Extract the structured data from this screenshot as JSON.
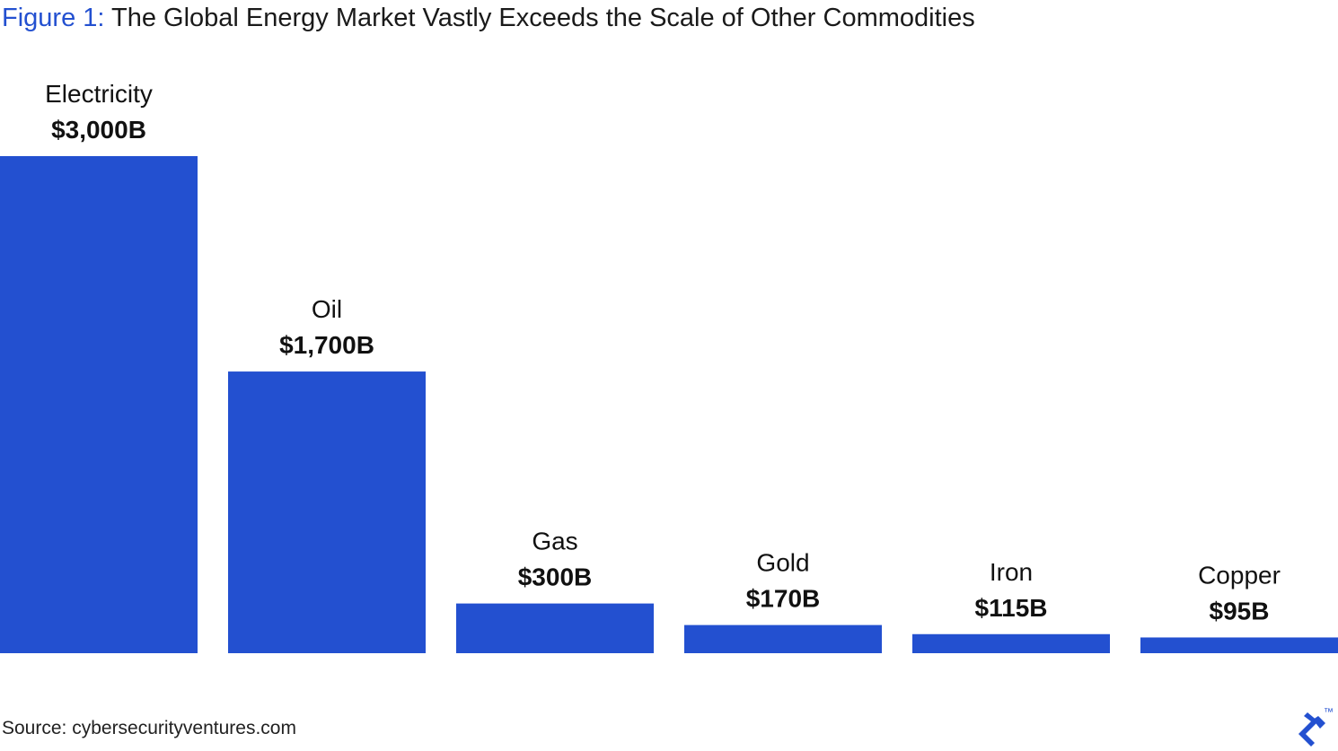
{
  "title": {
    "figure_label": "Figure 1:",
    "text": "The Global Energy Market Vastly Exceeds the Scale of Other Commodities"
  },
  "source": "Source: cybersecurityventures.com",
  "logo": {
    "icon": "toptal-logo-icon",
    "mark": "™"
  },
  "colors": {
    "bar": "#2350d0",
    "figure_label": "#2350d0"
  },
  "chart_data": {
    "type": "bar",
    "categories": [
      "Electricity",
      "Oil",
      "Gas",
      "Gold",
      "Iron",
      "Copper"
    ],
    "values": [
      3000,
      1700,
      300,
      170,
      115,
      95
    ],
    "value_labels": [
      "$3,000B",
      "$1,700B",
      "$300B",
      "$170B",
      "$115B",
      "$95B"
    ],
    "unit": "B",
    "ylim": [
      0,
      3000
    ],
    "grid": false,
    "legend": "none",
    "xlabel": "",
    "ylabel": ""
  }
}
